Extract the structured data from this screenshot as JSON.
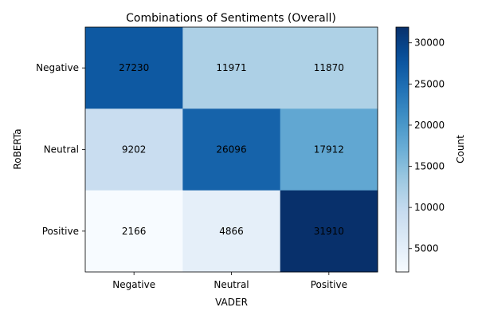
{
  "chart_data": {
    "type": "heatmap",
    "title": "Combinations of Sentiments (Overall)",
    "xlabel": "VADER",
    "ylabel": "RoBERTa",
    "x_categories": [
      "Negative",
      "Neutral",
      "Positive"
    ],
    "y_categories": [
      "Negative",
      "Neutral",
      "Positive"
    ],
    "values": [
      [
        27230,
        11971,
        11870
      ],
      [
        9202,
        26096,
        17912
      ],
      [
        2166,
        4866,
        31910
      ]
    ],
    "colorbar": {
      "label": "Count",
      "min": 2166,
      "max": 31910,
      "ticks": [
        5000,
        10000,
        15000,
        20000,
        25000,
        30000
      ],
      "colormap": "Blues"
    },
    "grid": false
  }
}
